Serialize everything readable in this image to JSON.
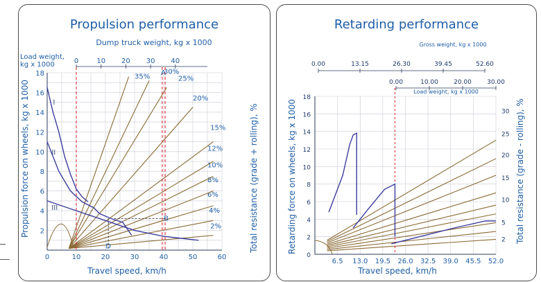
{
  "charts": {
    "propulsion": {
      "title": "Propulsion performance",
      "top_axis_title": "Dump truck weight, kg x 1000",
      "load_axis_title_1": "Load weight,",
      "load_axis_title_2": "kg x 1000",
      "xlabel": "Travel speed, km/h",
      "ylabel": "Propulsion force on wheels, kg x 1000",
      "y2label": "Total resistance (grade + rolling), %",
      "gear_labels": [
        "I",
        "II",
        "III"
      ],
      "point_labels": [
        "A",
        "B",
        "D"
      ]
    },
    "retarding": {
      "title": "Retarding performance",
      "gross_axis_title": "Gross weight, kg x 1000",
      "load_axis_title": "Load weight, kg x 1000",
      "xlabel": "Travel speed, km/h",
      "ylabel": "Retarding force on wheels, kg x 1000",
      "y2label": "Total resistance (grade - rolling), %"
    }
  },
  "chart_data": [
    {
      "type": "line",
      "title": "Propulsion performance",
      "xlabel": "Travel speed, km/h",
      "ylabel": "Propulsion force on wheels, kg x 1000",
      "xlim": [
        0,
        60
      ],
      "ylim": [
        0,
        18
      ],
      "x_ticks": [
        "0",
        "10",
        "20",
        "30",
        "40",
        "50",
        "60"
      ],
      "y_ticks": [
        "2",
        "4",
        "6",
        "8",
        "10",
        "12",
        "14",
        "16",
        "18"
      ],
      "top_axis": {
        "title": "Dump truck weight, kg x 1000",
        "ticks": [
          "0",
          "10",
          "20",
          "30",
          "40"
        ]
      },
      "load_axis_ticks": [
        "0",
        "10",
        "20",
        "30",
        "40"
      ],
      "resistance_labels": [
        "2%",
        "4%",
        "6%",
        "8%",
        "10%",
        "12%",
        "15%",
        "20%",
        "25%",
        "30%",
        "35%"
      ],
      "series": [
        {
          "name": "I",
          "points": [
            [
              0,
              16.5
            ],
            [
              2,
              14
            ],
            [
              4,
              12
            ],
            [
              6,
              9.5
            ],
            [
              8,
              7.7
            ],
            [
              10,
              6.2
            ],
            [
              12,
              5.4
            ],
            [
              14,
              4.9
            ]
          ]
        },
        {
          "name": "II",
          "points": [
            [
              0,
              11
            ],
            [
              4,
              8
            ],
            [
              8,
              6
            ],
            [
              12,
              4.9
            ],
            [
              16,
              4.3
            ],
            [
              18,
              3.7
            ],
            [
              22,
              3.2
            ],
            [
              26,
              2.8
            ],
            [
              29,
              1.5
            ]
          ]
        },
        {
          "name": "III",
          "points": [
            [
              0,
              5
            ],
            [
              10,
              4
            ],
            [
              20,
              3
            ],
            [
              30,
              2
            ],
            [
              40,
              1.4
            ],
            [
              52,
              1
            ]
          ]
        }
      ],
      "markers": [
        {
          "label": "A",
          "x": 40,
          "y": 18
        },
        {
          "label": "B",
          "x": 41,
          "y": 3.2
        },
        {
          "label": "D",
          "x": 21,
          "y": 0.4
        }
      ],
      "reference_lines_x": [
        10,
        39.5,
        40.5
      ]
    },
    {
      "type": "line",
      "title": "Retarding performance",
      "xlabel": "Travel speed, km/h",
      "ylabel": "Retarding force on wheels, kg x 1000",
      "xlim": [
        0,
        52
      ],
      "ylim": [
        0,
        18
      ],
      "x_ticks": [
        "6.5",
        "13.0",
        "19.5",
        "26.0",
        "32.5",
        "39.0",
        "45.5",
        "52.0"
      ],
      "y_ticks": [
        "0",
        "2",
        "4",
        "6",
        "8",
        "10",
        "12",
        "14",
        "16",
        "18"
      ],
      "gross_axis": {
        "title": "Gross weight, kg x 1000",
        "ticks": [
          "0.00",
          "13.15",
          "26.30",
          "39.45",
          "52.60"
        ]
      },
      "load_axis": {
        "title": "Load weight, kg x 1000",
        "ticks": [
          "0.00",
          "10.00",
          "20.00",
          "30.00"
        ]
      },
      "resistance_ticks": [
        "2",
        "5",
        "10",
        "15",
        "20",
        "25",
        "30"
      ],
      "series": [
        {
          "name": "I",
          "points": [
            [
              4,
              4.8
            ],
            [
              8,
              9
            ],
            [
              10,
              12.5
            ],
            [
              11,
              13.6
            ],
            [
              12,
              13.8
            ],
            [
              12,
              4.5
            ]
          ]
        },
        {
          "name": "II",
          "points": [
            [
              11,
              3
            ],
            [
              15,
              5
            ],
            [
              20,
              7.4
            ],
            [
              23,
              8
            ],
            [
              23,
              2
            ]
          ]
        },
        {
          "name": "III",
          "points": [
            [
              22,
              1.2
            ],
            [
              30,
              2
            ],
            [
              40,
              3
            ],
            [
              49,
              3.8
            ],
            [
              52,
              3.8
            ]
          ]
        }
      ],
      "reference_lines_x": [
        23
      ]
    }
  ]
}
